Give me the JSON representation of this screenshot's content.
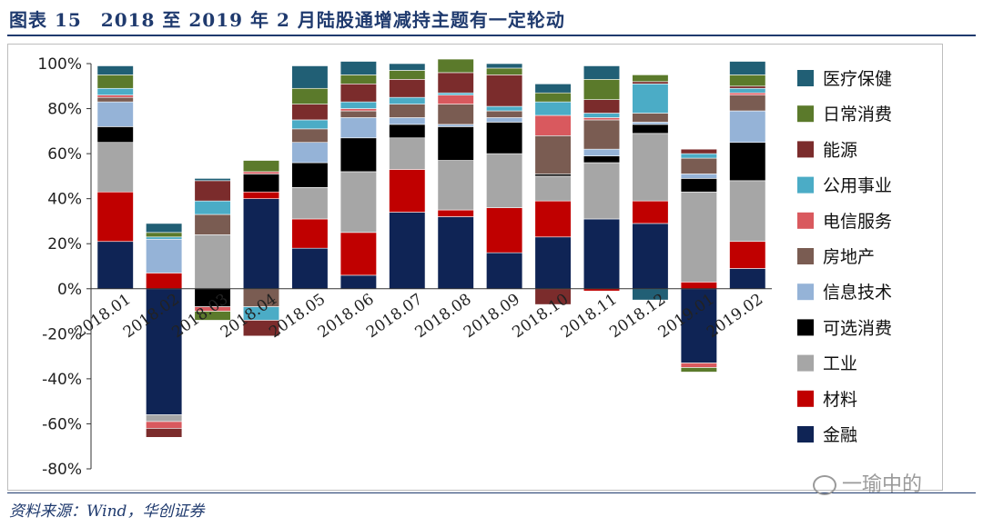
{
  "title": "图表 15　2018 至 2019 年 2 月陆股通增减持主题有一定轮动",
  "source": "资料来源：Wind，华创证券",
  "watermark": "一瑜中的",
  "chart_data": {
    "type": "stacked-bar",
    "ylim": [
      -80,
      100
    ],
    "yticks": [
      -80,
      -60,
      -40,
      -20,
      0,
      20,
      40,
      60,
      80,
      100
    ],
    "ytick_labels": [
      "-80%",
      "-60%",
      "-40%",
      "-20%",
      "0%",
      "20%",
      "40%",
      "60%",
      "80%",
      "100%"
    ],
    "categories": [
      "2018.01",
      "2018.02",
      "2018.03",
      "2018.04",
      "2018.05",
      "2018.06",
      "2018.07",
      "2018.08",
      "2018.09",
      "2018.10",
      "2018.11",
      "2018.12",
      "2019.01",
      "2019.02"
    ],
    "series": [
      {
        "name": "金融",
        "color": "#0f2455",
        "values": [
          21,
          -56,
          0,
          40,
          18,
          6,
          34,
          32,
          16,
          23,
          31,
          29,
          -33,
          9
        ]
      },
      {
        "name": "材料",
        "color": "#c00000",
        "values": [
          22,
          7,
          0,
          3,
          13,
          19,
          19,
          3,
          20,
          16,
          -1,
          10,
          3,
          12
        ]
      },
      {
        "name": "工业",
        "color": "#a6a6a6",
        "values": [
          22,
          -3,
          24,
          0,
          14,
          27,
          14,
          22,
          24,
          11,
          25,
          30,
          40,
          27
        ]
      },
      {
        "name": "可选消费",
        "color": "#000000",
        "values": [
          7,
          0,
          -8,
          8,
          11,
          15,
          6,
          15,
          14,
          1,
          3,
          4,
          6,
          17
        ]
      },
      {
        "name": "信息技术",
        "color": "#95b3d7",
        "values": [
          11,
          15,
          0,
          0,
          9,
          9,
          3,
          1,
          2,
          0,
          3,
          1,
          2,
          14
        ]
      },
      {
        "name": "房地产",
        "color": "#7a5c52",
        "values": [
          2,
          0,
          9,
          -8,
          6,
          3,
          6,
          9,
          3,
          17,
          13,
          4,
          7,
          7
        ]
      },
      {
        "name": "电信服务",
        "color": "#d9595e",
        "values": [
          1,
          -3,
          -2,
          1,
          0,
          1,
          0,
          4,
          0,
          9,
          1,
          0,
          -2,
          1
        ]
      },
      {
        "name": "公用事业",
        "color": "#4bacc6",
        "values": [
          3,
          1,
          6,
          -6,
          4,
          3,
          3,
          1,
          2,
          6,
          2,
          13,
          2,
          2
        ]
      },
      {
        "name": "能源",
        "color": "#7b2c2c",
        "values": [
          0,
          -4,
          9,
          -7,
          7,
          8,
          8,
          9,
          14,
          -7,
          6,
          1,
          2,
          1
        ]
      },
      {
        "name": "日常消费",
        "color": "#5b7a2b",
        "values": [
          6,
          2,
          -4,
          5,
          7,
          4,
          4,
          6,
          3,
          4,
          9,
          3,
          -2,
          5
        ]
      },
      {
        "name": "医疗保健",
        "color": "#215f75",
        "values": [
          4,
          4,
          1,
          0,
          10,
          6,
          3,
          0,
          2,
          4,
          6,
          -5,
          0,
          6
        ]
      }
    ],
    "legend_order": [
      "医疗保健",
      "日常消费",
      "能源",
      "公用事业",
      "电信服务",
      "房地产",
      "信息技术",
      "可选消费",
      "工业",
      "材料",
      "金融"
    ],
    "legend_position": "right"
  }
}
